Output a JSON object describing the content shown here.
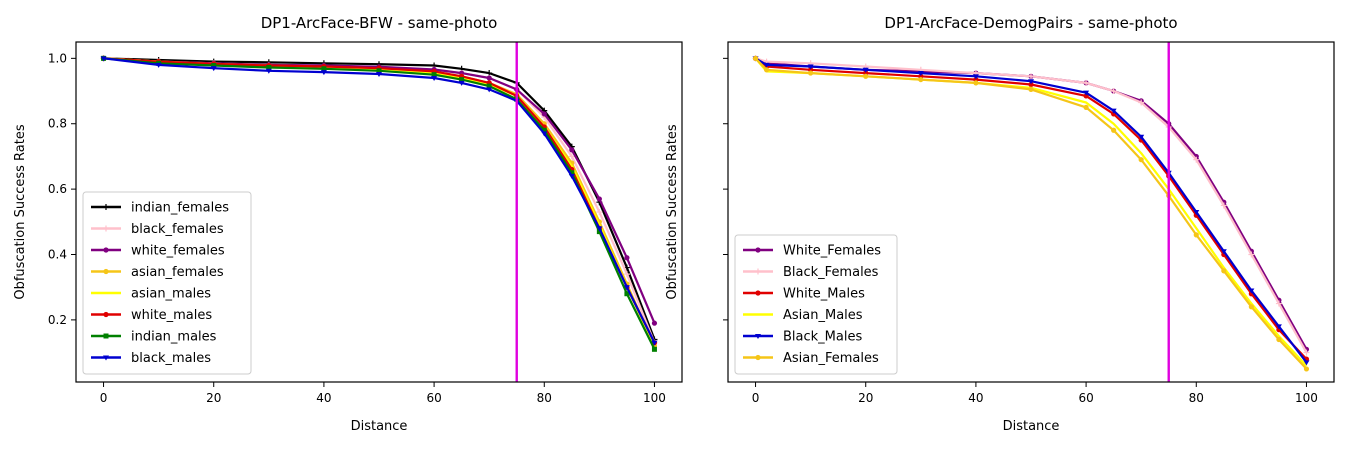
{
  "chart_data": [
    {
      "type": "line",
      "title": "DP1-ArcFace-BFW - same-photo",
      "xlabel": "Distance",
      "ylabel": "Obfuscation Success Rates",
      "xlim": [
        -5,
        105
      ],
      "ylim": [
        0.01,
        1.05
      ],
      "xticks": [
        0,
        20,
        40,
        60,
        80,
        100
      ],
      "yticks": [
        0.2,
        0.4,
        0.6,
        0.8,
        1.0
      ],
      "xtick_labels": [
        "0",
        "20",
        "40",
        "60",
        "80",
        "100"
      ],
      "ytick_labels": [
        "0.2",
        "0.4",
        "0.6",
        "0.8",
        "1.0"
      ],
      "legend_position": "lower-left",
      "vline": {
        "x": 75,
        "color": "#e000e0"
      },
      "series": [
        {
          "name": "indian_females",
          "color": "#000000",
          "marker": "plus",
          "x": [
            0,
            10,
            20,
            30,
            40,
            50,
            60,
            65,
            70,
            75,
            80,
            85,
            90,
            95,
            100
          ],
          "y": [
            1.0,
            0.995,
            0.99,
            0.988,
            0.985,
            0.982,
            0.978,
            0.968,
            0.955,
            0.925,
            0.84,
            0.73,
            0.56,
            0.36,
            0.14
          ]
        },
        {
          "name": "black_females",
          "color": "#ffc0cb",
          "marker": "plus",
          "x": [
            0,
            10,
            20,
            30,
            40,
            50,
            60,
            65,
            70,
            75,
            80,
            85,
            90,
            95,
            100
          ],
          "y": [
            1.0,
            0.99,
            0.985,
            0.98,
            0.977,
            0.972,
            0.965,
            0.955,
            0.94,
            0.905,
            0.82,
            0.7,
            0.53,
            0.34,
            0.13
          ]
        },
        {
          "name": "white_females",
          "color": "#800080",
          "marker": "dot",
          "x": [
            0,
            10,
            20,
            30,
            40,
            50,
            60,
            65,
            70,
            75,
            80,
            85,
            90,
            95,
            100
          ],
          "y": [
            1.0,
            0.99,
            0.985,
            0.98,
            0.978,
            0.974,
            0.966,
            0.955,
            0.94,
            0.905,
            0.83,
            0.72,
            0.57,
            0.39,
            0.19
          ]
        },
        {
          "name": "asian_females",
          "color": "#f5c518",
          "marker": "dot",
          "x": [
            0,
            10,
            20,
            30,
            40,
            50,
            60,
            65,
            70,
            75,
            80,
            85,
            90,
            95,
            100
          ],
          "y": [
            1.0,
            0.99,
            0.983,
            0.978,
            0.974,
            0.968,
            0.958,
            0.945,
            0.925,
            0.89,
            0.8,
            0.68,
            0.5,
            0.31,
            0.12
          ]
        },
        {
          "name": "asian_males",
          "color": "#ffff00",
          "marker": "none",
          "x": [
            0,
            10,
            20,
            30,
            40,
            50,
            60,
            65,
            70,
            75,
            80,
            85,
            90,
            95,
            100
          ],
          "y": [
            1.0,
            0.99,
            0.982,
            0.977,
            0.972,
            0.966,
            0.955,
            0.94,
            0.92,
            0.885,
            0.79,
            0.67,
            0.49,
            0.3,
            0.12
          ]
        },
        {
          "name": "white_males",
          "color": "#e00000",
          "marker": "dot",
          "x": [
            0,
            10,
            20,
            30,
            40,
            50,
            60,
            65,
            70,
            75,
            80,
            85,
            90,
            95,
            100
          ],
          "y": [
            1.0,
            0.99,
            0.983,
            0.978,
            0.975,
            0.97,
            0.96,
            0.945,
            0.925,
            0.885,
            0.79,
            0.66,
            0.48,
            0.3,
            0.13
          ]
        },
        {
          "name": "indian_males",
          "color": "#008000",
          "marker": "square",
          "x": [
            0,
            10,
            20,
            30,
            40,
            50,
            60,
            65,
            70,
            75,
            80,
            85,
            90,
            95,
            100
          ],
          "y": [
            1.0,
            0.985,
            0.978,
            0.972,
            0.968,
            0.962,
            0.95,
            0.935,
            0.915,
            0.875,
            0.78,
            0.65,
            0.47,
            0.28,
            0.11
          ]
        },
        {
          "name": "black_males",
          "color": "#0000d0",
          "marker": "triangle",
          "x": [
            0,
            10,
            20,
            30,
            40,
            50,
            60,
            65,
            70,
            75,
            80,
            85,
            90,
            95,
            100
          ],
          "y": [
            1.0,
            0.98,
            0.97,
            0.962,
            0.958,
            0.952,
            0.94,
            0.925,
            0.905,
            0.87,
            0.77,
            0.64,
            0.48,
            0.3,
            0.13
          ]
        }
      ]
    },
    {
      "type": "line",
      "title": "DP1-ArcFace-DemogPairs - same-photo",
      "xlabel": "Distance",
      "ylabel": "Obfuscation Success Rates",
      "xlim": [
        -5,
        105
      ],
      "ylim": [
        0.01,
        1.05
      ],
      "xticks": [
        0,
        20,
        40,
        60,
        80,
        100
      ],
      "yticks": [
        0.2,
        0.4,
        0.6,
        0.8,
        1.0
      ],
      "xtick_labels": [
        "0",
        "20",
        "40",
        "60",
        "80",
        "100"
      ],
      "ytick_labels": [
        "",
        "",
        "",
        "",
        ""
      ],
      "legend_position": "lower-left",
      "vline": {
        "x": 75,
        "color": "#e000e0"
      },
      "series": [
        {
          "name": "White_Females",
          "color": "#800080",
          "marker": "dot",
          "x": [
            0,
            2,
            10,
            20,
            30,
            40,
            50,
            60,
            65,
            70,
            75,
            80,
            85,
            90,
            95,
            100
          ],
          "y": [
            1.0,
            0.985,
            0.975,
            0.965,
            0.96,
            0.955,
            0.945,
            0.925,
            0.9,
            0.87,
            0.8,
            0.7,
            0.56,
            0.41,
            0.26,
            0.11
          ]
        },
        {
          "name": "Black_Females",
          "color": "#ffc0cb",
          "marker": "plus",
          "x": [
            0,
            2,
            10,
            20,
            30,
            40,
            50,
            60,
            65,
            70,
            75,
            80,
            85,
            90,
            95,
            100
          ],
          "y": [
            1.0,
            0.99,
            0.985,
            0.975,
            0.965,
            0.955,
            0.945,
            0.925,
            0.9,
            0.865,
            0.79,
            0.69,
            0.55,
            0.4,
            0.25,
            0.1
          ]
        },
        {
          "name": "White_Males",
          "color": "#e00000",
          "marker": "dot",
          "x": [
            0,
            2,
            10,
            20,
            30,
            40,
            50,
            60,
            65,
            70,
            75,
            80,
            85,
            90,
            95,
            100
          ],
          "y": [
            1.0,
            0.975,
            0.965,
            0.955,
            0.945,
            0.935,
            0.92,
            0.885,
            0.83,
            0.75,
            0.64,
            0.52,
            0.4,
            0.28,
            0.17,
            0.08
          ]
        },
        {
          "name": "Asian_Males",
          "color": "#ffff00",
          "marker": "none",
          "x": [
            0,
            2,
            10,
            20,
            30,
            40,
            50,
            60,
            65,
            70,
            75,
            80,
            85,
            90,
            95,
            100
          ],
          "y": [
            1.0,
            0.96,
            0.955,
            0.945,
            0.935,
            0.925,
            0.91,
            0.865,
            0.8,
            0.71,
            0.6,
            0.48,
            0.36,
            0.25,
            0.15,
            0.06
          ]
        },
        {
          "name": "Black_Males",
          "color": "#0000d0",
          "marker": "triangle",
          "x": [
            0,
            2,
            10,
            20,
            30,
            40,
            50,
            60,
            65,
            70,
            75,
            80,
            85,
            90,
            95,
            100
          ],
          "y": [
            1.0,
            0.98,
            0.975,
            0.965,
            0.955,
            0.945,
            0.93,
            0.895,
            0.84,
            0.76,
            0.65,
            0.53,
            0.41,
            0.29,
            0.18,
            0.07
          ]
        },
        {
          "name": "Asian_Females",
          "color": "#f5c518",
          "marker": "dot",
          "x": [
            0,
            2,
            10,
            20,
            30,
            40,
            50,
            60,
            65,
            70,
            75,
            80,
            85,
            90,
            95,
            100
          ],
          "y": [
            1.0,
            0.965,
            0.955,
            0.945,
            0.935,
            0.925,
            0.905,
            0.85,
            0.78,
            0.69,
            0.58,
            0.46,
            0.35,
            0.24,
            0.14,
            0.05
          ]
        }
      ]
    }
  ]
}
